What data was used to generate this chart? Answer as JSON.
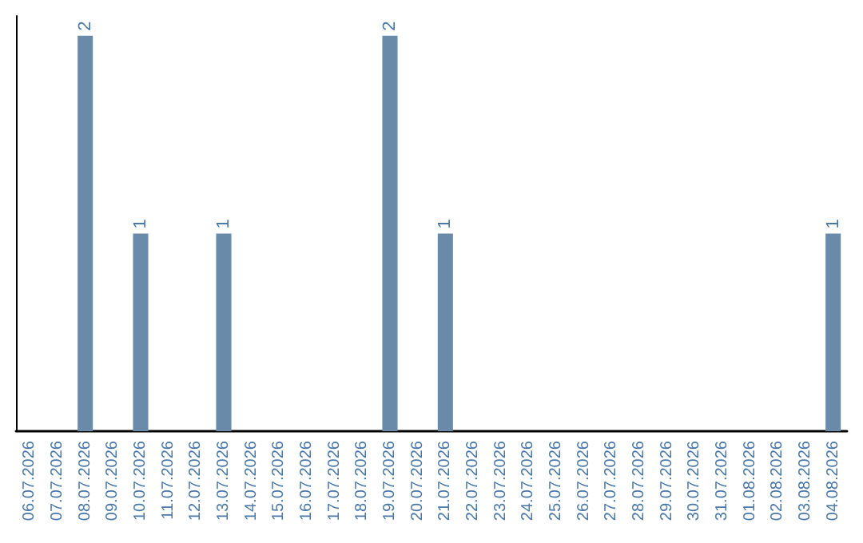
{
  "chart_data": {
    "type": "bar",
    "categories": [
      "06.07.2026",
      "07.07.2026",
      "08.07.2026",
      "09.07.2026",
      "10.07.2026",
      "11.07.2026",
      "12.07.2026",
      "13.07.2026",
      "14.07.2026",
      "15.07.2026",
      "16.07.2026",
      "17.07.2026",
      "18.07.2026",
      "19.07.2026",
      "20.07.2026",
      "21.07.2026",
      "22.07.2026",
      "23.07.2026",
      "24.07.2026",
      "25.07.2026",
      "26.07.2026",
      "27.07.2026",
      "28.07.2026",
      "29.07.2026",
      "30.07.2026",
      "31.07.2026",
      "01.08.2026",
      "02.08.2026",
      "03.08.2026",
      "04.08.2026"
    ],
    "values": [
      0,
      0,
      2,
      0,
      1,
      0,
      0,
      1,
      0,
      0,
      0,
      0,
      0,
      2,
      0,
      1,
      0,
      0,
      0,
      0,
      0,
      0,
      0,
      0,
      0,
      0,
      0,
      0,
      0,
      1
    ],
    "value_labels": [
      null,
      null,
      "2",
      null,
      "1",
      null,
      null,
      "1",
      null,
      null,
      null,
      null,
      null,
      "2",
      null,
      "1",
      null,
      null,
      null,
      null,
      null,
      null,
      null,
      null,
      null,
      null,
      null,
      null,
      null,
      "1"
    ],
    "color": "#6a8aaa",
    "ylim": [
      0,
      2.1
    ],
    "grid": false,
    "tick_labels": "x"
  }
}
